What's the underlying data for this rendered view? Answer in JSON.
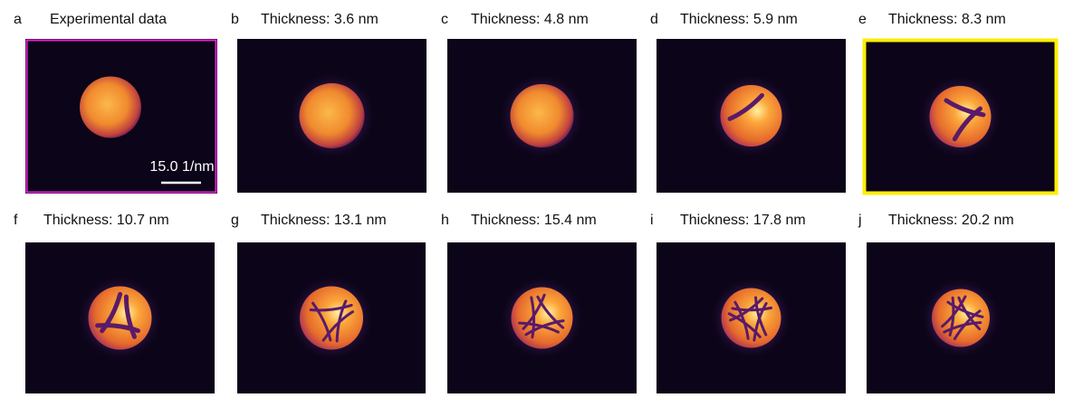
{
  "panels": [
    {
      "letter": "a",
      "title": "Experimental data"
    },
    {
      "letter": "b",
      "title": "Thickness: 3.6 nm"
    },
    {
      "letter": "c",
      "title": "Thickness: 4.8 nm"
    },
    {
      "letter": "d",
      "title": "Thickness: 5.9 nm"
    },
    {
      "letter": "e",
      "title": "Thickness: 8.3 nm"
    },
    {
      "letter": "f",
      "title": "Thickness: 10.7 nm"
    },
    {
      "letter": "g",
      "title": "Thickness: 13.1 nm"
    },
    {
      "letter": "h",
      "title": "Thickness: 15.4 nm"
    },
    {
      "letter": "i",
      "title": "Thickness: 17.8 nm"
    },
    {
      "letter": "j",
      "title": "Thickness: 20.2 nm"
    }
  ],
  "scale_bar": "15.0 1/nm"
}
